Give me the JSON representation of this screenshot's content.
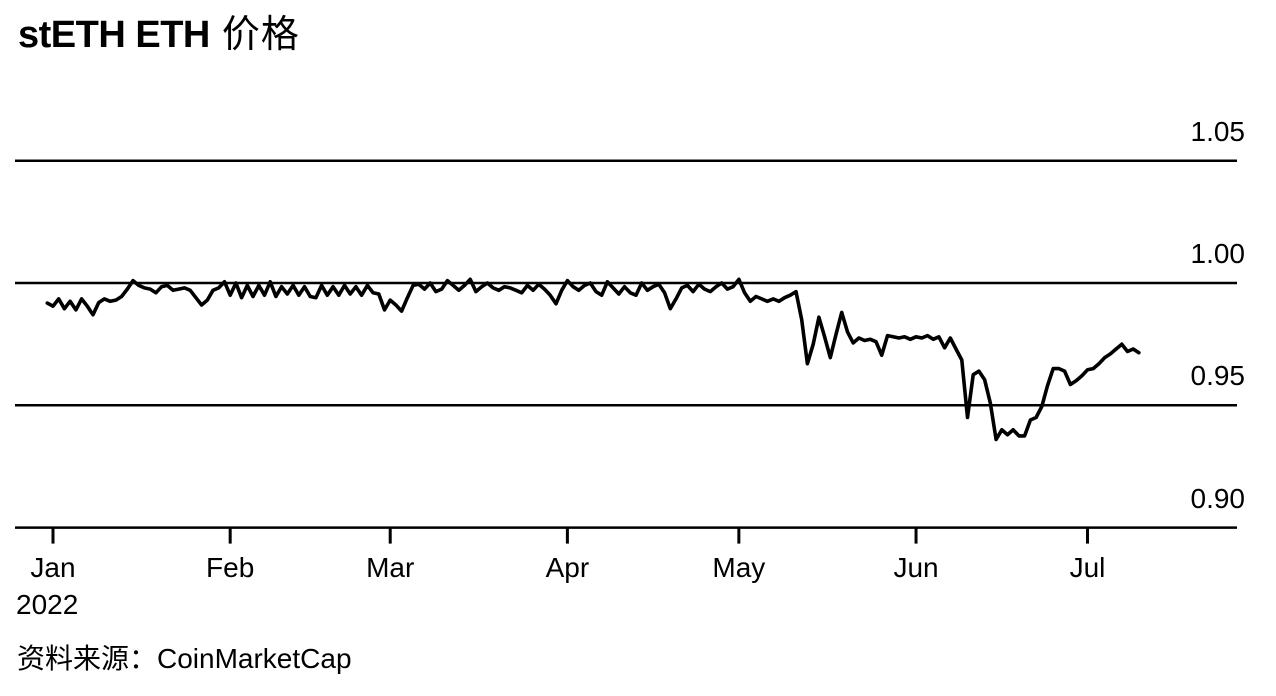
{
  "title": {
    "latin": "stETH ETH",
    "cjk": "价格",
    "full": "stETH ETH 价格"
  },
  "source": {
    "text": "资料来源：CoinMarketCap"
  },
  "colors": {
    "background": "#ffffff",
    "line": "#000000",
    "grid": "#000000",
    "text": "#000000"
  },
  "chart_data": {
    "type": "line",
    "title": "stETH ETH 价格",
    "series_name": "stETH/ETH price",
    "grid": "horizontal",
    "legend": "none",
    "x_axis": {
      "year_label": "2022",
      "tick_labels": [
        "Jan",
        "Feb",
        "Mar",
        "Apr",
        "May",
        "Jun",
        "Jul"
      ],
      "tick_days_from_jan1": [
        0,
        31,
        59,
        90,
        120,
        151,
        181
      ],
      "range_days": [
        -1,
        190
      ]
    },
    "y_axis": {
      "side": "right",
      "tick_labels": [
        "1.05",
        "1.00",
        "0.95",
        "0.90"
      ],
      "tick_values": [
        1.05,
        1.0,
        0.95,
        0.9
      ],
      "range": [
        0.9,
        1.05
      ]
    },
    "first_point_day_from_jan1": -1,
    "point_interval_days": 1,
    "values": [
      0.9918,
      0.9905,
      0.9935,
      0.9895,
      0.9925,
      0.989,
      0.9935,
      0.9905,
      0.987,
      0.992,
      0.9935,
      0.9925,
      0.993,
      0.9945,
      0.9975,
      1.001,
      0.999,
      0.998,
      0.9975,
      0.996,
      0.9985,
      0.999,
      0.997,
      0.9975,
      0.998,
      0.997,
      0.994,
      0.991,
      0.993,
      0.997,
      0.998,
      1.0005,
      0.995,
      1.0,
      0.994,
      0.999,
      0.9945,
      0.999,
      0.995,
      1.0005,
      0.9945,
      0.9985,
      0.9955,
      0.999,
      0.995,
      0.9985,
      0.9945,
      0.994,
      0.999,
      0.995,
      0.9985,
      0.995,
      0.999,
      0.9955,
      0.9985,
      0.995,
      0.999,
      0.996,
      0.9955,
      0.989,
      0.993,
      0.991,
      0.9885,
      0.994,
      0.999,
      0.9995,
      0.9975,
      1.0,
      0.9965,
      0.9975,
      1.001,
      0.999,
      0.997,
      0.999,
      1.0015,
      0.9965,
      0.9985,
      1.0,
      0.998,
      0.997,
      0.9985,
      0.998,
      0.997,
      0.996,
      0.999,
      0.997,
      0.9995,
      0.9975,
      0.995,
      0.9915,
      0.997,
      1.001,
      0.9985,
      0.997,
      0.999,
      1.0,
      0.9965,
      0.995,
      1.0005,
      0.998,
      0.9955,
      0.9985,
      0.996,
      0.995,
      1.0,
      0.997,
      0.9985,
      0.9995,
      0.996,
      0.9895,
      0.9935,
      0.998,
      0.999,
      0.9965,
      0.9995,
      0.9975,
      0.9965,
      0.9985,
      1.0,
      0.9975,
      0.9985,
      1.0015,
      0.996,
      0.9925,
      0.9945,
      0.9935,
      0.9925,
      0.9935,
      0.9925,
      0.994,
      0.995,
      0.9965,
      0.985,
      0.967,
      0.975,
      0.986,
      0.978,
      0.9695,
      0.979,
      0.988,
      0.98,
      0.9755,
      0.9775,
      0.9765,
      0.977,
      0.976,
      0.9705,
      0.9785,
      0.978,
      0.9775,
      0.978,
      0.977,
      0.978,
      0.9775,
      0.9785,
      0.977,
      0.978,
      0.9735,
      0.9775,
      0.973,
      0.9685,
      0.945,
      0.9625,
      0.964,
      0.9605,
      0.951,
      0.936,
      0.94,
      0.938,
      0.94,
      0.9375,
      0.9375,
      0.944,
      0.945,
      0.9495,
      0.958,
      0.965,
      0.965,
      0.964,
      0.9585,
      0.96,
      0.962,
      0.9645,
      0.965,
      0.967,
      0.9695,
      0.971,
      0.973,
      0.975,
      0.972,
      0.973,
      0.9715
    ]
  }
}
